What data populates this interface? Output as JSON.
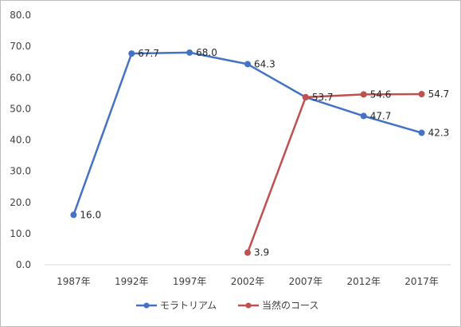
{
  "chart_data": {
    "type": "line",
    "title": "",
    "xlabel": "",
    "ylabel": "",
    "categories": [
      "1987年",
      "1992年",
      "1997年",
      "2002年",
      "2007年",
      "2012年",
      "2017年"
    ],
    "ylim": [
      0,
      80
    ],
    "yticks": [
      "0.0",
      "10.0",
      "20.0",
      "30.0",
      "40.0",
      "50.0",
      "60.0",
      "70.0",
      "80.0"
    ],
    "grid": false,
    "legend_position": "bottom",
    "series": [
      {
        "name": "モラトリアム",
        "color": "#4472c4",
        "values": [
          16.0,
          67.7,
          68.0,
          64.3,
          53.7,
          47.7,
          42.3
        ],
        "labels": [
          "16.0",
          "67.7",
          "68.0",
          "64.3",
          "53.7",
          "47.7",
          "42.3"
        ]
      },
      {
        "name": "当然のコース",
        "color": "#c0504d",
        "values": [
          null,
          null,
          null,
          3.9,
          53.7,
          54.6,
          54.7
        ],
        "labels": [
          "",
          "",
          "",
          "3.9",
          "",
          "54.6",
          "54.7"
        ]
      }
    ]
  }
}
